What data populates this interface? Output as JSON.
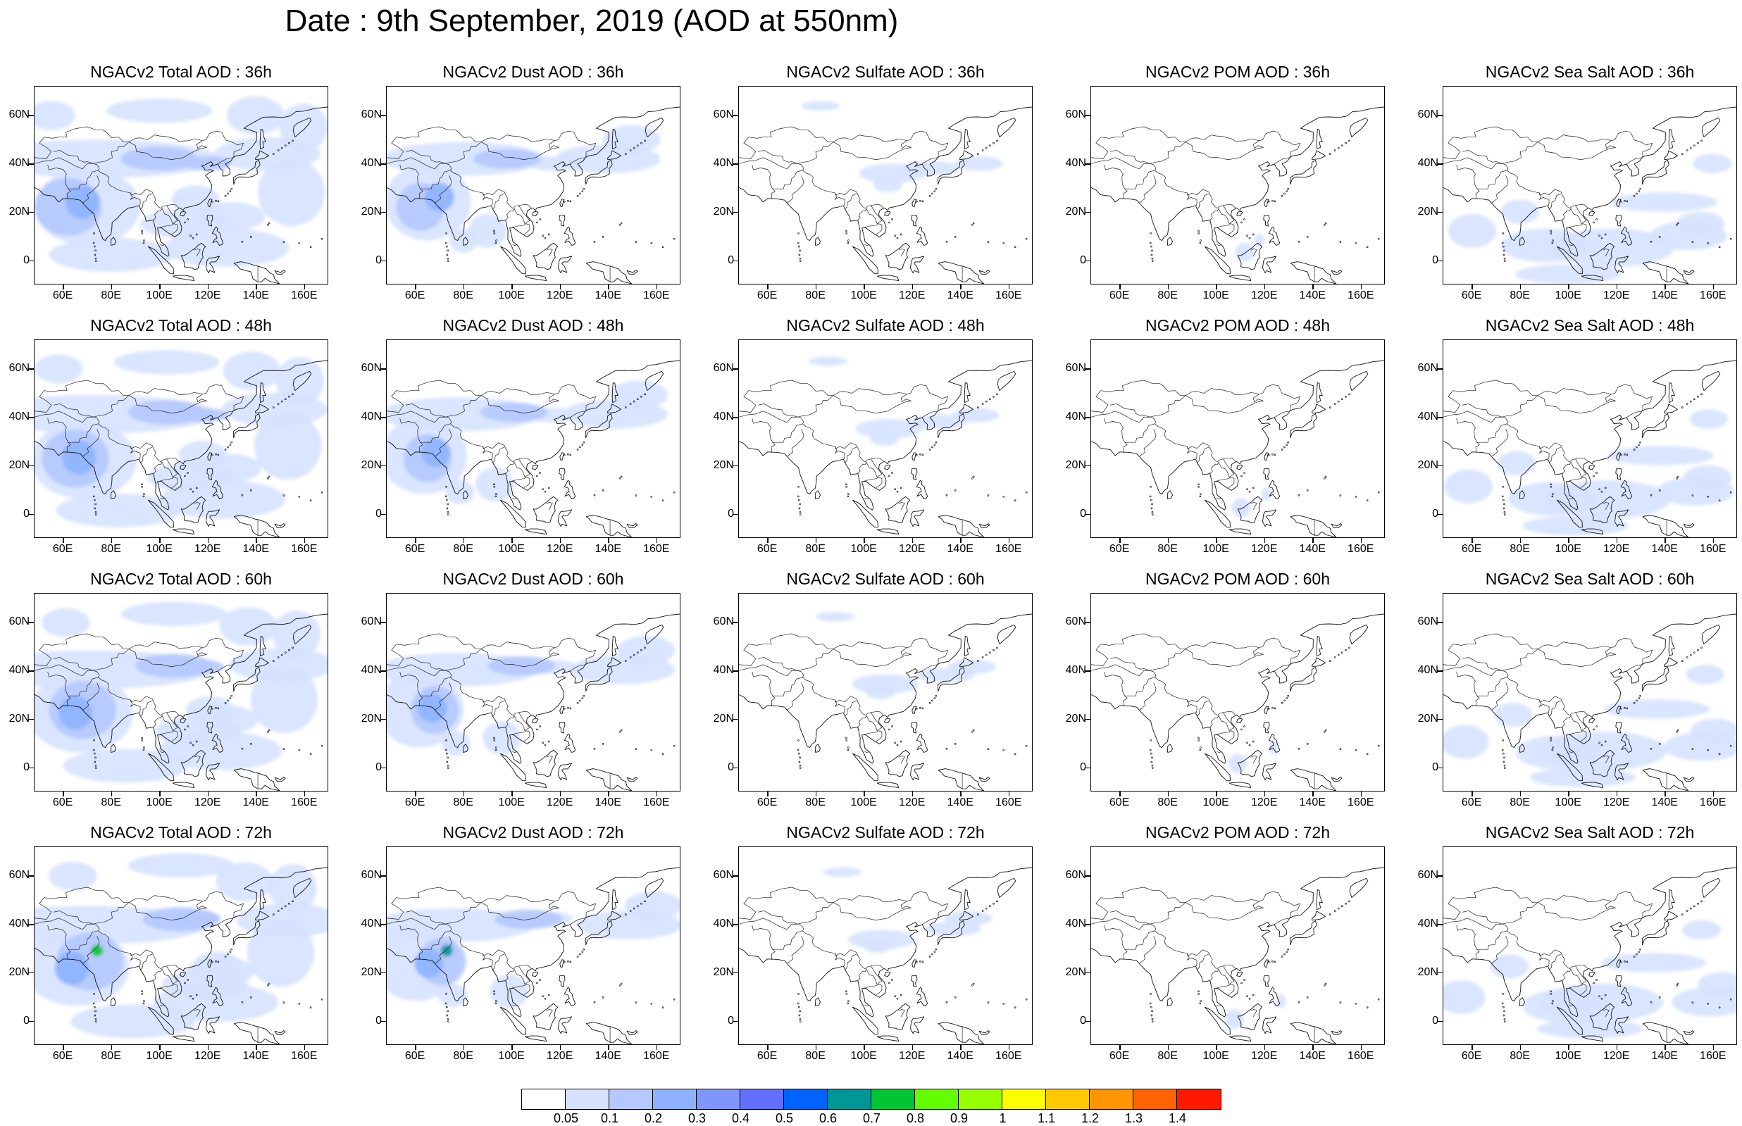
{
  "figure": {
    "title": "Date : 9th September, 2019 (AOD at 550nm)",
    "lat_labels": [
      "60N",
      "40N",
      "20N",
      "0"
    ],
    "lon_labels": [
      "60E",
      "80E",
      "100E",
      "120E",
      "140E",
      "160E"
    ],
    "panels": [
      {
        "title": "NGACv2 Total AOD : 36h",
        "species": "total",
        "hour": "36h"
      },
      {
        "title": "NGACv2 Dust AOD : 36h",
        "species": "dust",
        "hour": "36h"
      },
      {
        "title": "NGACv2 Sulfate AOD : 36h",
        "species": "sulfate",
        "hour": "36h"
      },
      {
        "title": "NGACv2 POM AOD : 36h",
        "species": "pom",
        "hour": "36h"
      },
      {
        "title": "NGACv2 Sea Salt AOD : 36h",
        "species": "seasalt",
        "hour": "36h"
      },
      {
        "title": "NGACv2 Total AOD : 48h",
        "species": "total",
        "hour": "48h"
      },
      {
        "title": "NGACv2 Dust AOD : 48h",
        "species": "dust",
        "hour": "48h"
      },
      {
        "title": "NGACv2 Sulfate AOD : 48h",
        "species": "sulfate",
        "hour": "48h"
      },
      {
        "title": "NGACv2 POM AOD : 48h",
        "species": "pom",
        "hour": "48h"
      },
      {
        "title": "NGACv2 Sea Salt AOD : 48h",
        "species": "seasalt",
        "hour": "48h"
      },
      {
        "title": "NGACv2 Total AOD : 60h",
        "species": "total",
        "hour": "60h"
      },
      {
        "title": "NGACv2 Dust AOD : 60h",
        "species": "dust",
        "hour": "60h"
      },
      {
        "title": "NGACv2 Sulfate AOD : 60h",
        "species": "sulfate",
        "hour": "60h"
      },
      {
        "title": "NGACv2 POM AOD : 60h",
        "species": "pom",
        "hour": "60h"
      },
      {
        "title": "NGACv2 Sea Salt AOD : 60h",
        "species": "seasalt",
        "hour": "60h"
      },
      {
        "title": "NGACv2 Total AOD : 72h",
        "species": "total",
        "hour": "72h"
      },
      {
        "title": "NGACv2 Dust AOD : 72h",
        "species": "dust",
        "hour": "72h"
      },
      {
        "title": "NGACv2 Sulfate AOD : 72h",
        "species": "sulfate",
        "hour": "72h"
      },
      {
        "title": "NGACv2 POM AOD : 72h",
        "species": "pom",
        "hour": "72h"
      },
      {
        "title": "NGACv2 Sea Salt  AOD : 72h",
        "species": "seasalt",
        "hour": "72h"
      }
    ]
  },
  "colorbar": {
    "labels": [
      "0.05",
      "0.1",
      "0.2",
      "0.3",
      "0.4",
      "0.5",
      "0.6",
      "0.7",
      "0.8",
      "0.9",
      "1",
      "1.1",
      "1.2",
      "1.3",
      "1.4"
    ],
    "colors": [
      "#ffffff",
      "#d6e2ff",
      "#b5c9ff",
      "#8eb2ff",
      "#7f96ff",
      "#6370ff",
      "#0063ff",
      "#009696",
      "#00c633",
      "#63ff00",
      "#96ff00",
      "#ffff00",
      "#ffc800",
      "#ff9600",
      "#ff6400",
      "#ff1900"
    ]
  }
}
